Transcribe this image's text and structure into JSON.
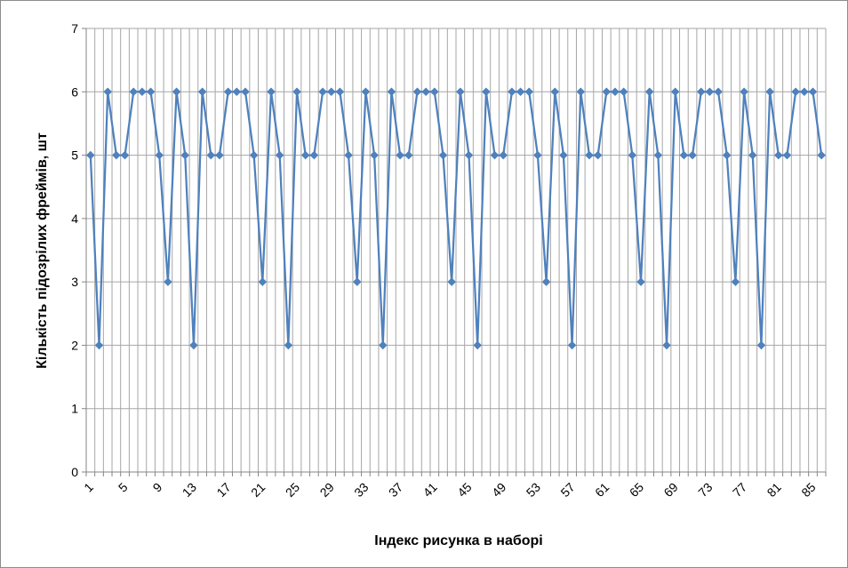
{
  "chart_data": {
    "type": "line",
    "title": "",
    "xlabel": "Індекс рисунка в наборі",
    "ylabel": "Кількість підозрілих фреймів, шт",
    "ylim": [
      0,
      7
    ],
    "yticks": [
      0,
      1,
      2,
      3,
      4,
      5,
      6,
      7
    ],
    "xticks": [
      1,
      5,
      9,
      13,
      17,
      21,
      25,
      29,
      33,
      37,
      41,
      45,
      49,
      53,
      57,
      61,
      65,
      69,
      73,
      77,
      81,
      85
    ],
    "grid": "on",
    "legend": "none",
    "series": [
      {
        "x": [
          1,
          2,
          3,
          4,
          5,
          6,
          7,
          8,
          9,
          10,
          11,
          12,
          13,
          14,
          15,
          16,
          17,
          18,
          19,
          20,
          21,
          22,
          23,
          24,
          25,
          26,
          27,
          28,
          29,
          30,
          31,
          32,
          33,
          34,
          35,
          36,
          37,
          38,
          39,
          40,
          41,
          42,
          43,
          44,
          45,
          46,
          47,
          48,
          49,
          50,
          51,
          52,
          53,
          54,
          55,
          56,
          57,
          58,
          59,
          60,
          61,
          62,
          63,
          64,
          65,
          66,
          67,
          68,
          69,
          70,
          71,
          72,
          73,
          74,
          75,
          76,
          77,
          78,
          79,
          80,
          81,
          82,
          83,
          84,
          85,
          86
        ],
        "values": [
          5,
          2,
          6,
          5,
          5,
          6,
          6,
          6,
          5,
          3,
          6,
          5,
          2,
          6,
          5,
          5,
          6,
          6,
          6,
          5,
          3,
          6,
          5,
          2,
          6,
          5,
          5,
          6,
          6,
          6,
          5,
          3,
          6,
          5,
          2,
          6,
          5,
          5,
          6,
          6,
          6,
          5,
          3,
          6,
          5,
          2,
          6,
          5,
          5,
          6,
          6,
          6,
          5,
          3,
          6,
          5,
          2,
          6,
          5,
          5,
          6,
          6,
          6,
          5,
          3,
          6,
          5,
          2,
          6,
          5,
          5,
          6,
          6,
          6,
          5,
          3,
          6,
          5,
          2,
          6,
          5,
          5,
          6,
          6,
          6,
          5
        ]
      }
    ]
  },
  "colors": {
    "line": "#4f81bd",
    "grid": "#a6a6a6",
    "axis": "#868686",
    "text": "#000000"
  }
}
